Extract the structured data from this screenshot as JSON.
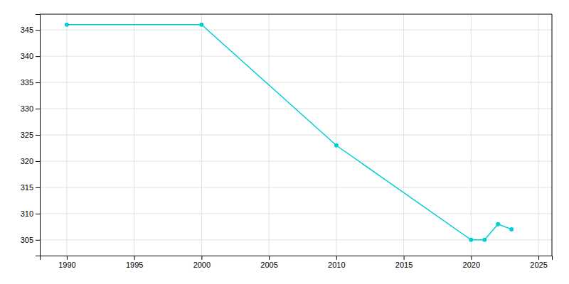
{
  "chart_data": {
    "type": "line",
    "x": [
      1990,
      2000,
      2010,
      2020,
      2021,
      2022,
      2023
    ],
    "values": [
      346,
      346,
      323,
      305,
      305,
      308,
      307
    ],
    "color": "#00CED1",
    "marker": "circle",
    "xlim": [
      1988,
      2026
    ],
    "ylim": [
      302,
      348
    ],
    "xticks": [
      1990,
      1995,
      2000,
      2005,
      2010,
      2015,
      2020,
      2025
    ],
    "yticks": [
      305,
      310,
      315,
      320,
      325,
      330,
      335,
      340,
      345
    ],
    "grid": true
  }
}
